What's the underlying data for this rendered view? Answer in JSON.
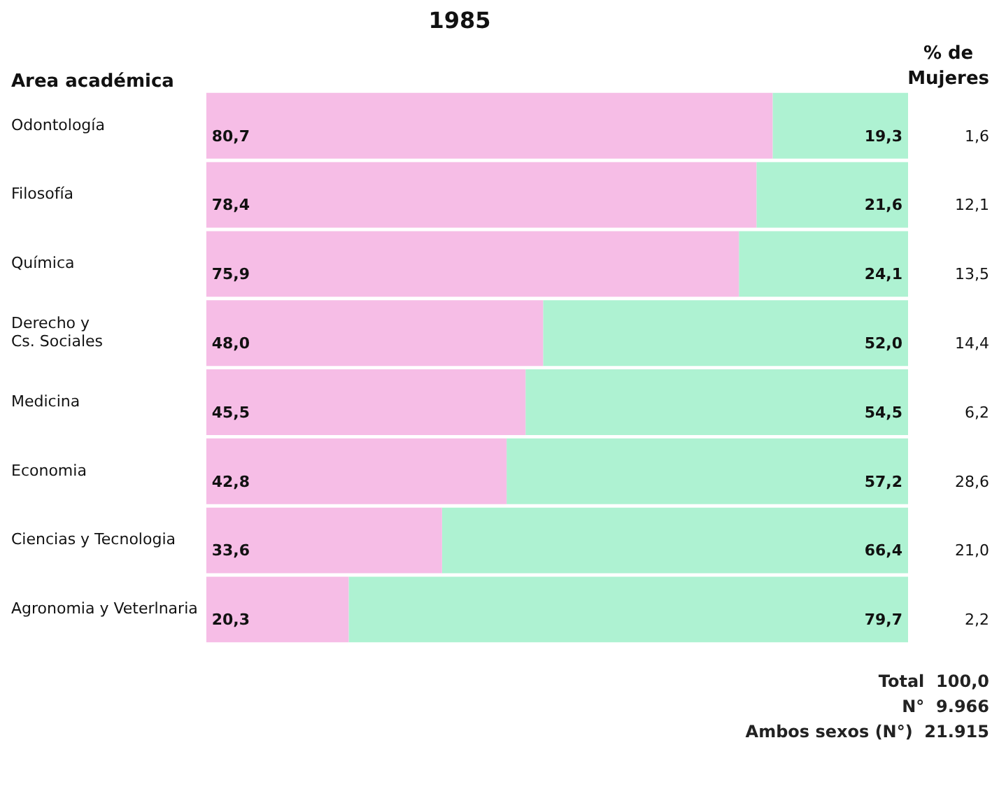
{
  "chart_data": {
    "type": "bar",
    "orientation": "horizontal",
    "stacked": true,
    "title": "1985",
    "ylabel": "Area académica",
    "categories": [
      "Odontología",
      "Filosofía",
      "Química",
      "Derecho y\nCs. Sociales",
      "Medicina",
      "Economia",
      "Ciencias y Tecnologia",
      "Agronomia y Veterlnaria"
    ],
    "series": [
      {
        "color": "#f6bde6",
        "values": [
          80.7,
          78.4,
          75.9,
          48.0,
          45.5,
          42.8,
          33.6,
          20.3
        ],
        "value_labels": [
          "80,7",
          "78,4",
          "75,9",
          "48,0",
          "45,5",
          "42,8",
          "33,6",
          "20,3"
        ]
      },
      {
        "color": "#aef2d2",
        "values": [
          19.3,
          21.6,
          24.1,
          52.0,
          54.5,
          57.2,
          66.4,
          79.7
        ],
        "value_labels": [
          "19,3",
          "21,6",
          "24,1",
          "52,0",
          "54,5",
          "57,2",
          "66,4",
          "79,7"
        ]
      }
    ],
    "tick_labels": "y",
    "grid": false,
    "legend": false,
    "annotations": [
      "% de\nMujeres",
      "1,6",
      "12,1",
      "13,5",
      "14,4",
      "6,2",
      "28,6",
      "21,0",
      "2,2",
      "Total  100,0",
      "N°  9.966",
      "Ambos sexos (N°)  21.915"
    ]
  }
}
